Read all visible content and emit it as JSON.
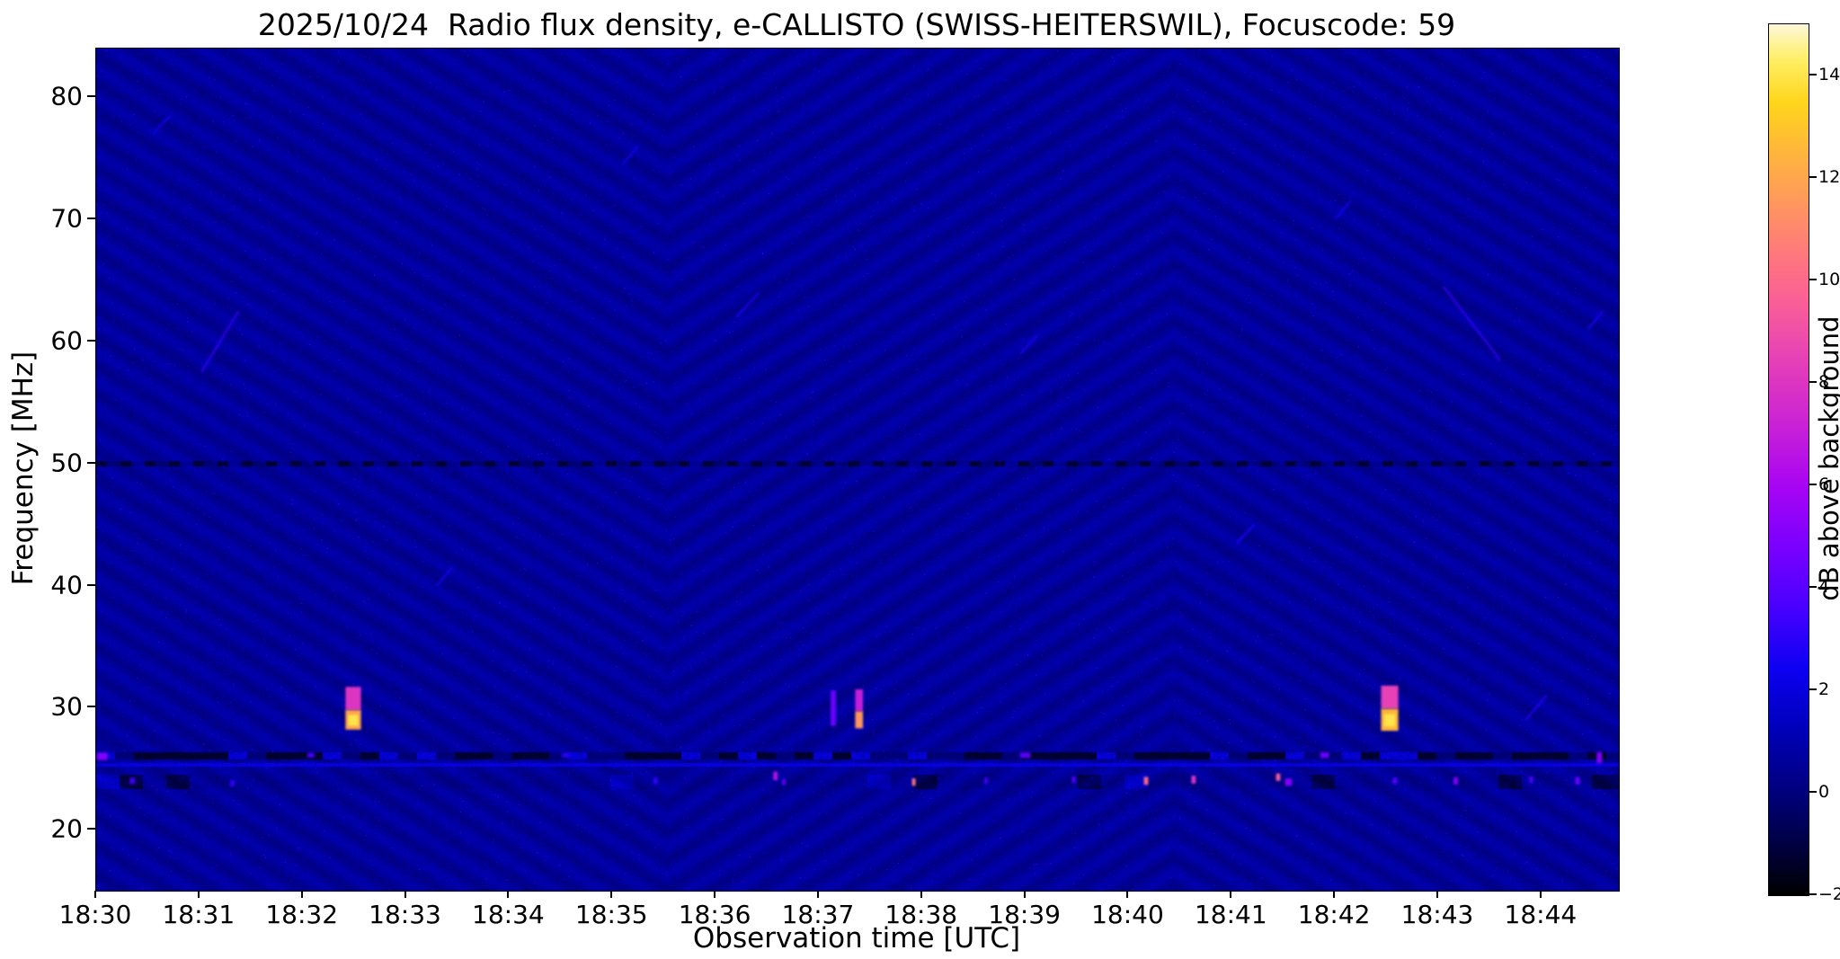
{
  "chart_data": {
    "type": "heatmap",
    "title": "2025/10/24  Radio flux density, e-CALLISTO (SWISS-HEITERSWIL), Focuscode: 59",
    "xlabel": "Observation time [UTC]",
    "ylabel": "Frequency [MHz]",
    "x_tick_labels": [
      "18:30",
      "18:31",
      "18:32",
      "18:33",
      "18:34",
      "18:35",
      "18:36",
      "18:37",
      "18:38",
      "18:39",
      "18:40",
      "18:41",
      "18:42",
      "18:43",
      "18:44"
    ],
    "y_tick_values_mhz": [
      80,
      70,
      60,
      50,
      40,
      30,
      20
    ],
    "time_start_utc": "18:30",
    "time_end_utc": "18:45",
    "duration_minutes": 14.75,
    "freq_range_mhz": [
      15,
      84
    ],
    "value_range_db": [
      -2,
      15
    ],
    "background_level_db": 0.6,
    "colorbar": {
      "label": "dB above background",
      "tick_values": [
        14,
        12,
        10,
        8,
        6,
        4,
        2,
        0,
        -2
      ],
      "value_min": -2,
      "value_max": 15,
      "colormap_stops": [
        [
          0.0,
          "#000000"
        ],
        [
          0.06,
          "#000044"
        ],
        [
          0.12,
          "#00007e"
        ],
        [
          0.19,
          "#0000b8"
        ],
        [
          0.26,
          "#0c00f2"
        ],
        [
          0.33,
          "#4800ff"
        ],
        [
          0.4,
          "#7a00ff"
        ],
        [
          0.47,
          "#a805f2"
        ],
        [
          0.54,
          "#c922d6"
        ],
        [
          0.61,
          "#e43eb9"
        ],
        [
          0.67,
          "#f75a9c"
        ],
        [
          0.73,
          "#ff757f"
        ],
        [
          0.79,
          "#ff9561"
        ],
        [
          0.85,
          "#ffb43e"
        ],
        [
          0.91,
          "#ffd51c"
        ],
        [
          0.96,
          "#ffef66"
        ],
        [
          1.0,
          "#fdf7d9"
        ]
      ]
    },
    "ripple_note": "faint diagonal interference fringes forming chevrons over the whole band",
    "rfi_lines": [
      {
        "freq_mhz": 50.0,
        "level_db": -1.4,
        "character": "dark dashed interference line across full duration"
      },
      {
        "freq_mhz": 26.1,
        "level_db": -1.6,
        "character": "dark patchy interference band with intermittent brighter segments"
      },
      {
        "freq_mhz": 25.33,
        "level_db": 1.5,
        "character": "faint continuous bright line"
      },
      {
        "freq_mhz": 23.9,
        "level_db": 0.4,
        "character": "speckled band with intermittent dark patches and bright point bursts"
      }
    ],
    "bursts": [
      {
        "t_min": 2.49,
        "duration_s": 9,
        "segments": [
          {
            "f_mhz": [
              29.8,
              31.7
            ],
            "db": 8
          },
          {
            "f_mhz": [
              28.2,
              29.8
            ],
            "db": 12,
            "core_db": 14
          }
        ]
      },
      {
        "t_min": 7.14,
        "duration_s": 3,
        "segments": [
          {
            "f_mhz": [
              28.5,
              31.4
            ],
            "db": 4.5
          }
        ]
      },
      {
        "t_min": 7.39,
        "duration_s": 4.5,
        "segments": [
          {
            "f_mhz": [
              29.7,
              31.5
            ],
            "db": 7
          },
          {
            "f_mhz": [
              28.3,
              29.7
            ],
            "db": 11.5
          }
        ]
      },
      {
        "t_min": 12.53,
        "duration_s": 10,
        "segments": [
          {
            "f_mhz": [
              29.9,
              31.8
            ],
            "db": 8.5
          },
          {
            "f_mhz": [
              28.1,
              29.9
            ],
            "db": 12.5,
            "core_db": 14
          }
        ]
      }
    ],
    "point_events": [
      {
        "t_min": 0.06,
        "f_mhz": 26.0,
        "db": 5,
        "dur_s": 6,
        "bw_mhz": 0.6
      },
      {
        "t_min": 0.35,
        "f_mhz": 24.0,
        "db": 3.5,
        "dur_s": 3,
        "bw_mhz": 0.5
      },
      {
        "t_min": 1.32,
        "f_mhz": 23.8,
        "db": 3.2,
        "dur_s": 2.5,
        "bw_mhz": 0.5
      },
      {
        "t_min": 2.08,
        "f_mhz": 26.1,
        "db": 3.5,
        "dur_s": 4,
        "bw_mhz": 0.4
      },
      {
        "t_min": 4.55,
        "f_mhz": 26.1,
        "db": 3,
        "dur_s": 4,
        "bw_mhz": 0.4
      },
      {
        "t_min": 5.42,
        "f_mhz": 24.0,
        "db": 3.2,
        "dur_s": 2.5,
        "bw_mhz": 0.5
      },
      {
        "t_min": 6.58,
        "f_mhz": 24.4,
        "db": 6.5,
        "dur_s": 2.5,
        "bw_mhz": 0.7
      },
      {
        "t_min": 6.66,
        "f_mhz": 23.9,
        "db": 4,
        "dur_s": 2,
        "bw_mhz": 0.5
      },
      {
        "t_min": 7.92,
        "f_mhz": 23.9,
        "db": 10.5,
        "dur_s": 2,
        "bw_mhz": 0.6
      },
      {
        "t_min": 8.62,
        "f_mhz": 24.0,
        "db": 3.5,
        "dur_s": 2,
        "bw_mhz": 0.5
      },
      {
        "t_min": 9.0,
        "f_mhz": 26.1,
        "db": 4,
        "dur_s": 6,
        "bw_mhz": 0.45
      },
      {
        "t_min": 9.47,
        "f_mhz": 24.1,
        "db": 4,
        "dur_s": 2,
        "bw_mhz": 0.5
      },
      {
        "t_min": 10.17,
        "f_mhz": 24.0,
        "db": 10,
        "dur_s": 2.5,
        "bw_mhz": 0.65
      },
      {
        "t_min": 10.63,
        "f_mhz": 24.1,
        "db": 8,
        "dur_s": 2.5,
        "bw_mhz": 0.65
      },
      {
        "t_min": 11.45,
        "f_mhz": 24.3,
        "db": 9.5,
        "dur_s": 2.5,
        "bw_mhz": 0.6
      },
      {
        "t_min": 11.55,
        "f_mhz": 23.9,
        "db": 5,
        "dur_s": 4,
        "bw_mhz": 0.6
      },
      {
        "t_min": 11.9,
        "f_mhz": 26.1,
        "db": 4.5,
        "dur_s": 5,
        "bw_mhz": 0.45
      },
      {
        "t_min": 12.58,
        "f_mhz": 24.0,
        "db": 4,
        "dur_s": 2.5,
        "bw_mhz": 0.5
      },
      {
        "t_min": 13.17,
        "f_mhz": 24.0,
        "db": 5,
        "dur_s": 2.5,
        "bw_mhz": 0.6
      },
      {
        "t_min": 13.9,
        "f_mhz": 24.1,
        "db": 4,
        "dur_s": 2,
        "bw_mhz": 0.5
      },
      {
        "t_min": 14.35,
        "f_mhz": 24.0,
        "db": 4.5,
        "dur_s": 2.5,
        "bw_mhz": 0.6
      },
      {
        "t_min": 14.56,
        "f_mhz": 25.9,
        "db": 5,
        "dur_s": 3,
        "bw_mhz": 0.9
      }
    ],
    "faint_streaks": [
      {
        "t1_min": 1.02,
        "f1_mhz": 57.5,
        "t2_min": 1.38,
        "f2_mhz": 62.5,
        "db": 3.2
      },
      {
        "t1_min": 13.05,
        "f1_mhz": 64.5,
        "t2_min": 13.6,
        "f2_mhz": 58.5,
        "db": 3.2
      },
      {
        "t1_min": 6.2,
        "f1_mhz": 62,
        "t2_min": 6.42,
        "f2_mhz": 64,
        "db": 2.8
      },
      {
        "t1_min": 8.95,
        "f1_mhz": 59,
        "t2_min": 9.12,
        "f2_mhz": 60.5,
        "db": 2.8
      },
      {
        "t1_min": 11.05,
        "f1_mhz": 43.5,
        "t2_min": 11.22,
        "f2_mhz": 45,
        "db": 2.8
      },
      {
        "t1_min": 0.55,
        "f1_mhz": 77,
        "t2_min": 0.72,
        "f2_mhz": 78.5,
        "db": 2.6
      },
      {
        "t1_min": 5.1,
        "f1_mhz": 74.5,
        "t2_min": 5.25,
        "f2_mhz": 76,
        "db": 2.6
      },
      {
        "t1_min": 12.0,
        "f1_mhz": 70,
        "t2_min": 12.15,
        "f2_mhz": 71.5,
        "db": 2.6
      },
      {
        "t1_min": 14.45,
        "f1_mhz": 61,
        "t2_min": 14.6,
        "f2_mhz": 62.5,
        "db": 2.8
      },
      {
        "t1_min": 3.3,
        "f1_mhz": 40,
        "t2_min": 3.45,
        "f2_mhz": 41.5,
        "db": 2.6
      },
      {
        "t1_min": 13.85,
        "f1_mhz": 29,
        "t2_min": 14.05,
        "f2_mhz": 31,
        "db": 3.0
      }
    ]
  }
}
